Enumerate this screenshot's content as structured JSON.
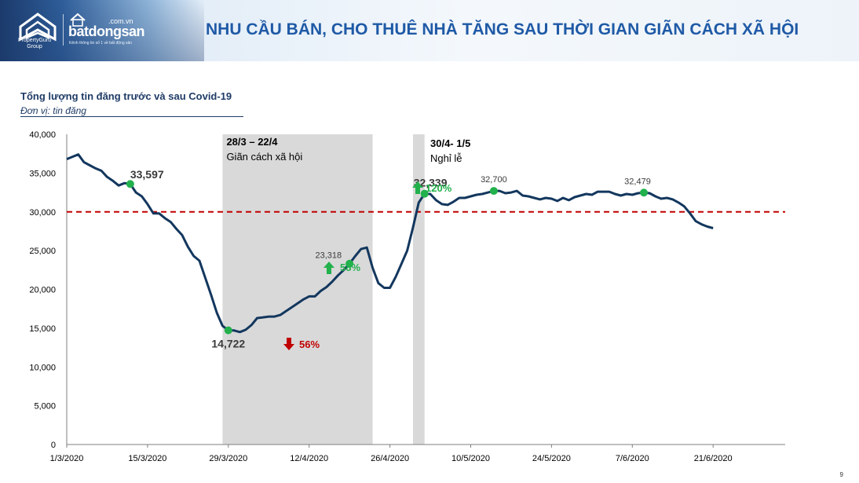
{
  "header": {
    "title": "NHU CẦU BÁN, CHO THUÊ NHÀ TĂNG SAU THỜI GIAN GIÃN CÁCH XÃ HỘI",
    "logo_pg": "PropertyGuru Group",
    "logo_bds": "batdongsan",
    "logo_bds_domain": ".com.vn",
    "logo_bds_tagline": "Kênh thông tin số 1 về bất động sản"
  },
  "chart_title": "Tổng lượng tin đăng trước và sau Covid-19",
  "chart_unit": "Đơn vị: tin đăng",
  "page_number": "9",
  "colors": {
    "line": "#13375e",
    "threshold": "#c00000",
    "marker": "#22b14c",
    "shade": "#d9d9d9",
    "up": "#22b14c",
    "down": "#c00000"
  },
  "chart_data": {
    "type": "line",
    "ylim": [
      0,
      40000
    ],
    "yticks": [
      "0",
      "5,000",
      "10,000",
      "15,000",
      "20,000",
      "25,000",
      "30,000",
      "35,000",
      "40,000"
    ],
    "x_start": "1/3/2020",
    "x_end": "27/6/2020",
    "xticks": [
      "1/3/2020",
      "15/3/2020",
      "29/3/2020",
      "12/4/2020",
      "26/4/2020",
      "10/5/2020",
      "24/5/2020",
      "7/6/2020",
      "21/6/2020"
    ],
    "threshold": 30000,
    "periods": [
      {
        "label": "28/3 – 22/4",
        "sublabel": "Giãn cách xã hội",
        "from_day": 27,
        "to_day": 53
      },
      {
        "label": "30/4- 1/5",
        "sublabel": "Nghỉ lễ",
        "from_day": 60,
        "to_day": 62
      }
    ],
    "series": [
      {
        "values": [
          36800,
          37100,
          37400,
          36400,
          36000,
          35600,
          35300,
          34500,
          34000,
          33400,
          33700,
          33597,
          32500,
          32000,
          31000,
          29800,
          29800,
          29200,
          28700,
          27800,
          27000,
          25500,
          24300,
          23700,
          21500,
          19300,
          17000,
          15300,
          14722,
          14700,
          14500,
          14800,
          15400,
          16300,
          16400,
          16500,
          16500,
          16700,
          17200,
          17700,
          18200,
          18700,
          19100,
          19100,
          19800,
          20300,
          21000,
          21800,
          22500,
          23318,
          24300,
          25200,
          25400,
          22800,
          20800,
          20200,
          20200,
          21600,
          23300,
          25000,
          28000,
          31200,
          32339,
          32300,
          31500,
          31000,
          30900,
          31300,
          31800,
          31800,
          32000,
          32200,
          32300,
          32500,
          32700,
          32700,
          32400,
          32500,
          32700,
          32100,
          32000,
          31800,
          31600,
          31800,
          31700,
          31400,
          31800,
          31500,
          31900,
          32100,
          32300,
          32200,
          32600,
          32600,
          32600,
          32300,
          32100,
          32300,
          32200,
          32400,
          32479,
          32400,
          32000,
          31700,
          31800,
          31600,
          31200,
          30700,
          29800,
          28800,
          28400,
          28100,
          27900
        ]
      }
    ],
    "annotations": [
      {
        "day": 11,
        "value": 33597,
        "label": "33,597",
        "style": "big"
      },
      {
        "day": 28,
        "value": 14722,
        "label": "14,722",
        "style": "big"
      },
      {
        "day": 49,
        "value": 23318,
        "label": "23,318",
        "style": "small"
      },
      {
        "day": 62,
        "value": 32339,
        "label": "32,339",
        "style": "big"
      },
      {
        "day": 74,
        "value": 32700,
        "label": "32,700",
        "style": "small"
      },
      {
        "day": 100,
        "value": 32479,
        "label": "32,479",
        "style": "small"
      }
    ],
    "changes": [
      {
        "label": "56%",
        "direction": "down"
      },
      {
        "label": "58%",
        "direction": "up"
      },
      {
        "label": "120%",
        "direction": "up"
      }
    ]
  }
}
